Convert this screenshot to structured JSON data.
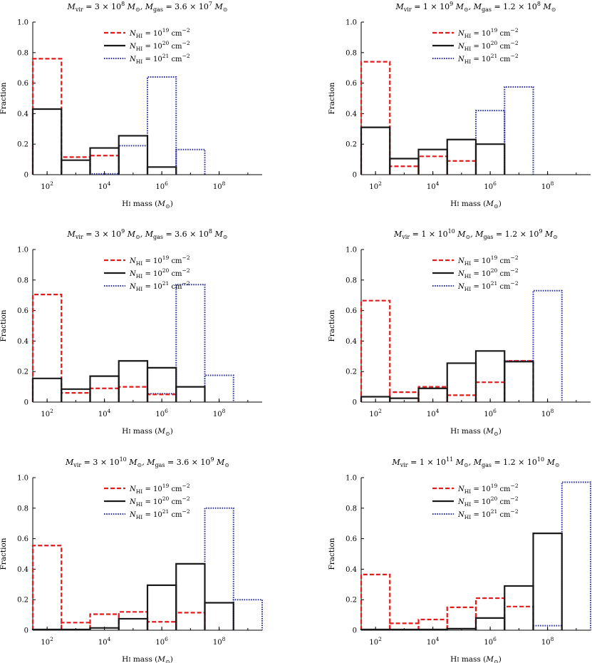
{
  "colors": {
    "s19": "#e41a1c",
    "s20": "#1a1a1a",
    "s21": "#2b2fa0"
  },
  "panel_titles": [
    {
      "mvir": "M<sub>vir</sub> = 3 × 10<sup>8</sup> M<sub>⊙</sub>, M<sub>gas</sub> = 3.6 × 10<sup>7</sup> M<sub>⊙</sub>"
    },
    {
      "mvir": "M<sub>vir</sub> = 1 × 10<sup>9</sup> M<sub>⊙</sub>, M<sub>gas</sub> = 1.2 × 10<sup>8</sup> M<sub>⊙</sub>"
    }
  ],
  "chart_data": [
    {
      "type": "bar",
      "title_parts": [
        "M",
        "vir",
        " = 3 × 10",
        "8",
        " M",
        "⊙",
        ", M",
        "gas",
        " = 3.6 × 10",
        "7",
        " M",
        "⊙"
      ],
      "title": "Mvir = 3 × 10^8 M⊙, Mgas = 3.6 × 10^7 M⊙",
      "xlabel": "HI mass (M⊙)",
      "ylabel": "Fraction",
      "xlim_log10": [
        1.5,
        9.5
      ],
      "ylim": [
        0,
        1.0
      ],
      "bin_edges_log10": [
        1.5,
        2.5,
        3.5,
        4.5,
        5.5,
        6.5,
        7.5,
        8.5,
        9.5
      ],
      "series": [
        {
          "name": "NHI = 10^19 cm^-2",
          "key": "s19",
          "values": [
            0.76,
            0.115,
            0.125,
            0.0,
            0.0,
            0.0,
            0.0,
            0.0
          ]
        },
        {
          "name": "NHI = 10^20 cm^-2",
          "key": "s20",
          "values": [
            0.43,
            0.095,
            0.175,
            0.255,
            0.05,
            0.0,
            0.0,
            0.0
          ]
        },
        {
          "name": "NHI = 10^21 cm^-2",
          "key": "s21",
          "values": [
            0.0,
            0.0,
            0.005,
            0.19,
            0.64,
            0.165,
            0.0,
            0.0
          ]
        }
      ]
    },
    {
      "type": "bar",
      "title": "Mvir = 1 × 10^9 M⊙, Mgas = 1.2 × 10^8 M⊙",
      "xlabel": "HI mass (M⊙)",
      "ylabel": "Fraction",
      "xlim_log10": [
        1.5,
        9.5
      ],
      "ylim": [
        0,
        1.0
      ],
      "bin_edges_log10": [
        1.5,
        2.5,
        3.5,
        4.5,
        5.5,
        6.5,
        7.5,
        8.5,
        9.5
      ],
      "series": [
        {
          "name": "NHI = 10^19 cm^-2",
          "key": "s19",
          "values": [
            0.74,
            0.055,
            0.12,
            0.09,
            0.0,
            0.0,
            0.0,
            0.0
          ]
        },
        {
          "name": "NHI = 10^20 cm^-2",
          "key": "s20",
          "values": [
            0.31,
            0.105,
            0.165,
            0.23,
            0.2,
            0.0,
            0.0,
            0.0
          ]
        },
        {
          "name": "NHI = 10^21 cm^-2",
          "key": "s21",
          "values": [
            0.0,
            0.0,
            0.0,
            0.0,
            0.42,
            0.575,
            0.0,
            0.0
          ]
        }
      ]
    },
    {
      "type": "bar",
      "title": "Mvir = 3 × 10^9 M⊙, Mgas = 3.6 × 10^8 M⊙",
      "xlabel": "HI mass (M⊙)",
      "ylabel": "Fraction",
      "xlim_log10": [
        1.5,
        9.5
      ],
      "ylim": [
        0,
        1.0
      ],
      "bin_edges_log10": [
        1.5,
        2.5,
        3.5,
        4.5,
        5.5,
        6.5,
        7.5,
        8.5,
        9.5
      ],
      "series": [
        {
          "name": "NHI = 10^19 cm^-2",
          "key": "s19",
          "values": [
            0.705,
            0.06,
            0.09,
            0.1,
            0.05,
            0.0,
            0.0,
            0.0
          ]
        },
        {
          "name": "NHI = 10^20 cm^-2",
          "key": "s20",
          "values": [
            0.155,
            0.085,
            0.17,
            0.27,
            0.225,
            0.1,
            0.0,
            0.0
          ]
        },
        {
          "name": "NHI = 10^21 cm^-2",
          "key": "s21",
          "values": [
            0.0,
            0.0,
            0.0,
            0.0,
            0.055,
            0.77,
            0.175,
            0.0
          ]
        }
      ]
    },
    {
      "type": "bar",
      "title": "Mvir = 1 × 10^10 M⊙, Mgas = 1.2 × 10^9 M⊙",
      "xlabel": "HI mass (M⊙)",
      "ylabel": "Fraction",
      "xlim_log10": [
        1.5,
        9.5
      ],
      "ylim": [
        0,
        1.0
      ],
      "bin_edges_log10": [
        1.5,
        2.5,
        3.5,
        4.5,
        5.5,
        6.5,
        7.5,
        8.5,
        9.5
      ],
      "series": [
        {
          "name": "NHI = 10^19 cm^-2",
          "key": "s19",
          "values": [
            0.665,
            0.065,
            0.1,
            0.045,
            0.13,
            0.27,
            0.0,
            0.0
          ]
        },
        {
          "name": "NHI = 10^20 cm^-2",
          "key": "s20",
          "values": [
            0.035,
            0.025,
            0.09,
            0.255,
            0.335,
            0.265,
            0.0,
            0.0
          ]
        },
        {
          "name": "NHI = 10^21 cm^-2",
          "key": "s21",
          "values": [
            0.0,
            0.0,
            0.0,
            0.0,
            0.0,
            0.27,
            0.73,
            0.0
          ]
        }
      ]
    },
    {
      "type": "bar",
      "title": "Mvir = 3 × 10^10 M⊙, Mgas = 3.6 × 10^9 M⊙",
      "xlabel": "HI mass (M⊙)",
      "ylabel": "Fraction",
      "xlim_log10": [
        1.5,
        9.5
      ],
      "ylim": [
        0,
        1.0
      ],
      "bin_edges_log10": [
        1.5,
        2.5,
        3.5,
        4.5,
        5.5,
        6.5,
        7.5,
        8.5,
        9.5
      ],
      "series": [
        {
          "name": "NHI = 10^19 cm^-2",
          "key": "s19",
          "values": [
            0.555,
            0.05,
            0.105,
            0.12,
            0.055,
            0.115,
            0.0,
            0.0
          ]
        },
        {
          "name": "NHI = 10^20 cm^-2",
          "key": "s20",
          "values": [
            0.005,
            0.005,
            0.015,
            0.075,
            0.295,
            0.435,
            0.18,
            0.0
          ]
        },
        {
          "name": "NHI = 10^21 cm^-2",
          "key": "s21",
          "values": [
            0.0,
            0.0,
            0.0,
            0.0,
            0.0,
            0.0,
            0.8,
            0.2
          ]
        }
      ]
    },
    {
      "type": "bar",
      "title": "Mvir = 1 × 10^11 M⊙, Mgas = 1.2 × 10^10 M⊙",
      "xlabel": "HI mass (M⊙)",
      "ylabel": "Fraction",
      "xlim_log10": [
        1.5,
        9.5
      ],
      "ylim": [
        0,
        1.0
      ],
      "bin_edges_log10": [
        1.5,
        2.5,
        3.5,
        4.5,
        5.5,
        6.5,
        7.5,
        8.5,
        9.5
      ],
      "series": [
        {
          "name": "NHI = 10^19 cm^-2",
          "key": "s19",
          "values": [
            0.365,
            0.045,
            0.07,
            0.15,
            0.21,
            0.155,
            0.0,
            0.0
          ]
        },
        {
          "name": "NHI = 10^20 cm^-2",
          "key": "s20",
          "values": [
            0.005,
            0.005,
            0.005,
            0.01,
            0.08,
            0.29,
            0.635,
            0.0
          ]
        },
        {
          "name": "NHI = 10^21 cm^-2",
          "key": "s21",
          "values": [
            0.0,
            0.0,
            0.0,
            0.0,
            0.0,
            0.0,
            0.03,
            0.97
          ]
        }
      ]
    }
  ],
  "titles": [
    {
      "vir_coef": "3",
      "vir_exp": "8",
      "gas_coef": "3.6",
      "gas_exp": "7"
    },
    {
      "vir_coef": "1",
      "vir_exp": "9",
      "gas_coef": "1.2",
      "gas_exp": "8"
    },
    {
      "vir_coef": "3",
      "vir_exp": "9",
      "gas_coef": "3.6",
      "gas_exp": "8"
    },
    {
      "vir_coef": "1",
      "vir_exp": "10",
      "gas_coef": "1.2",
      "gas_exp": "9"
    },
    {
      "vir_coef": "3",
      "vir_exp": "10",
      "gas_coef": "3.6",
      "gas_exp": "9"
    },
    {
      "vir_coef": "1",
      "vir_exp": "11",
      "gas_coef": "1.2",
      "gas_exp": "10"
    }
  ],
  "legend": [
    {
      "key": "s19",
      "exp": "19"
    },
    {
      "key": "s20",
      "exp": "20"
    },
    {
      "key": "s21",
      "exp": "21"
    }
  ],
  "y_ticks": [
    "0",
    "0.2",
    "0.4",
    "0.6",
    "0.8",
    "1.0"
  ],
  "x_tick_exps": [
    "2",
    "4",
    "6",
    "8"
  ]
}
